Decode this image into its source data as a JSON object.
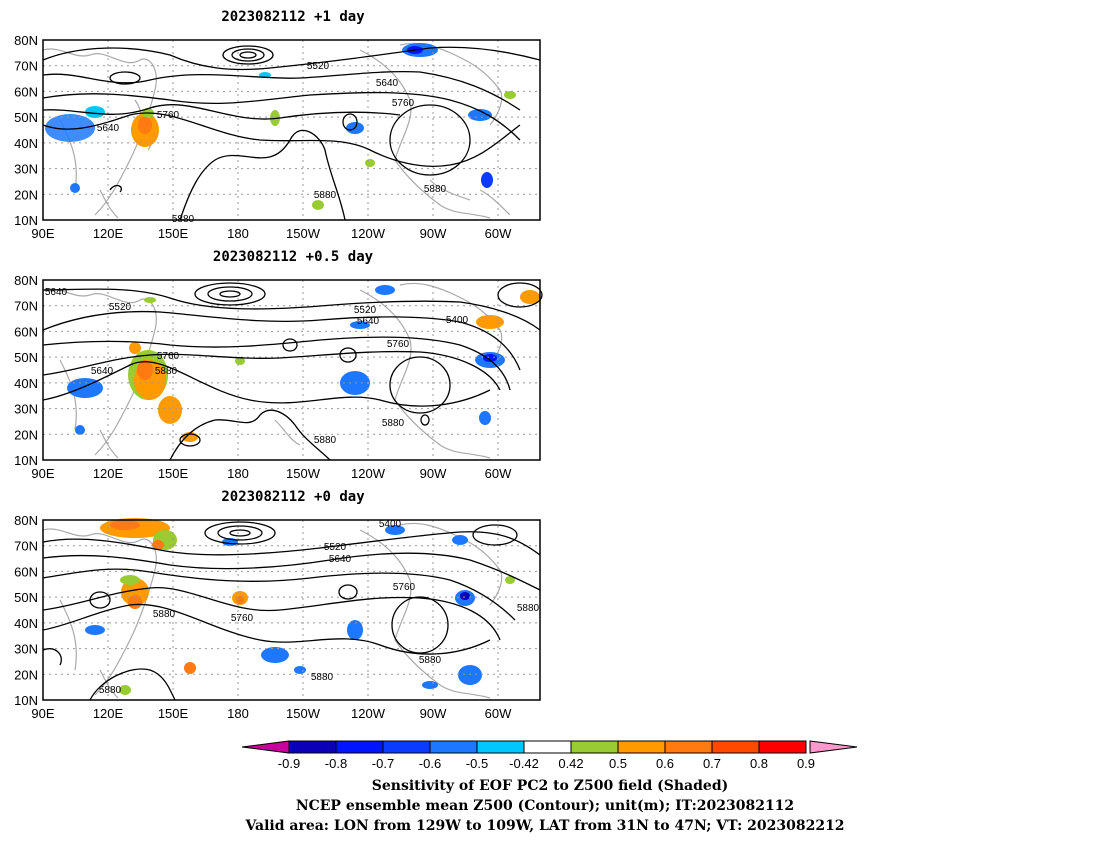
{
  "panels": [
    {
      "title": "2023082112 +1 day",
      "contour_labels": [
        "5520",
        "5640",
        "5760",
        "5640",
        "5760",
        "5880",
        "5880",
        "5880"
      ]
    },
    {
      "title": "2023082112 +0.5 day",
      "contour_labels": [
        "5640",
        "5520",
        "5520",
        "5640",
        "5400",
        "5760",
        "5640",
        "5760",
        "5880",
        "5880",
        "5880"
      ]
    },
    {
      "title": "2023082112 +0 day",
      "contour_labels": [
        "5400",
        "5520",
        "5640",
        "5760",
        "5880",
        "5880",
        "5760",
        "5880",
        "5880",
        "5880"
      ]
    }
  ],
  "lat_ticks": [
    "80N",
    "70N",
    "60N",
    "50N",
    "40N",
    "30N",
    "20N",
    "10N"
  ],
  "lon_ticks": [
    "90E",
    "120E",
    "150E",
    "180",
    "150W",
    "120W",
    "90W",
    "60W"
  ],
  "colorbar": {
    "tick_labels": [
      "-0.9",
      "-0.8",
      "-0.7",
      "-0.6",
      "-0.5",
      "-0.42",
      "0.42",
      "0.5",
      "0.6",
      "0.7",
      "0.8",
      "0.9"
    ],
    "colors": [
      "#c8009c",
      "#0b00b8",
      "#0014ff",
      "#0a3cff",
      "#1e78ff",
      "#00c8ff",
      "#ffffff",
      "#99cc33",
      "#ff9a00",
      "#ff7a10",
      "#ff4800",
      "#ff0000",
      "#ff99cc"
    ]
  },
  "caption": {
    "line1": "Sensitivity of EOF PC2 to Z500 field (Shaded)",
    "line2": "NCEP ensemble mean Z500 (Contour); unit(m); IT:2023082112",
    "line3": "Valid area: LON from 129W to 109W, LAT from 31N to 47N; VT: 2023082212"
  }
}
